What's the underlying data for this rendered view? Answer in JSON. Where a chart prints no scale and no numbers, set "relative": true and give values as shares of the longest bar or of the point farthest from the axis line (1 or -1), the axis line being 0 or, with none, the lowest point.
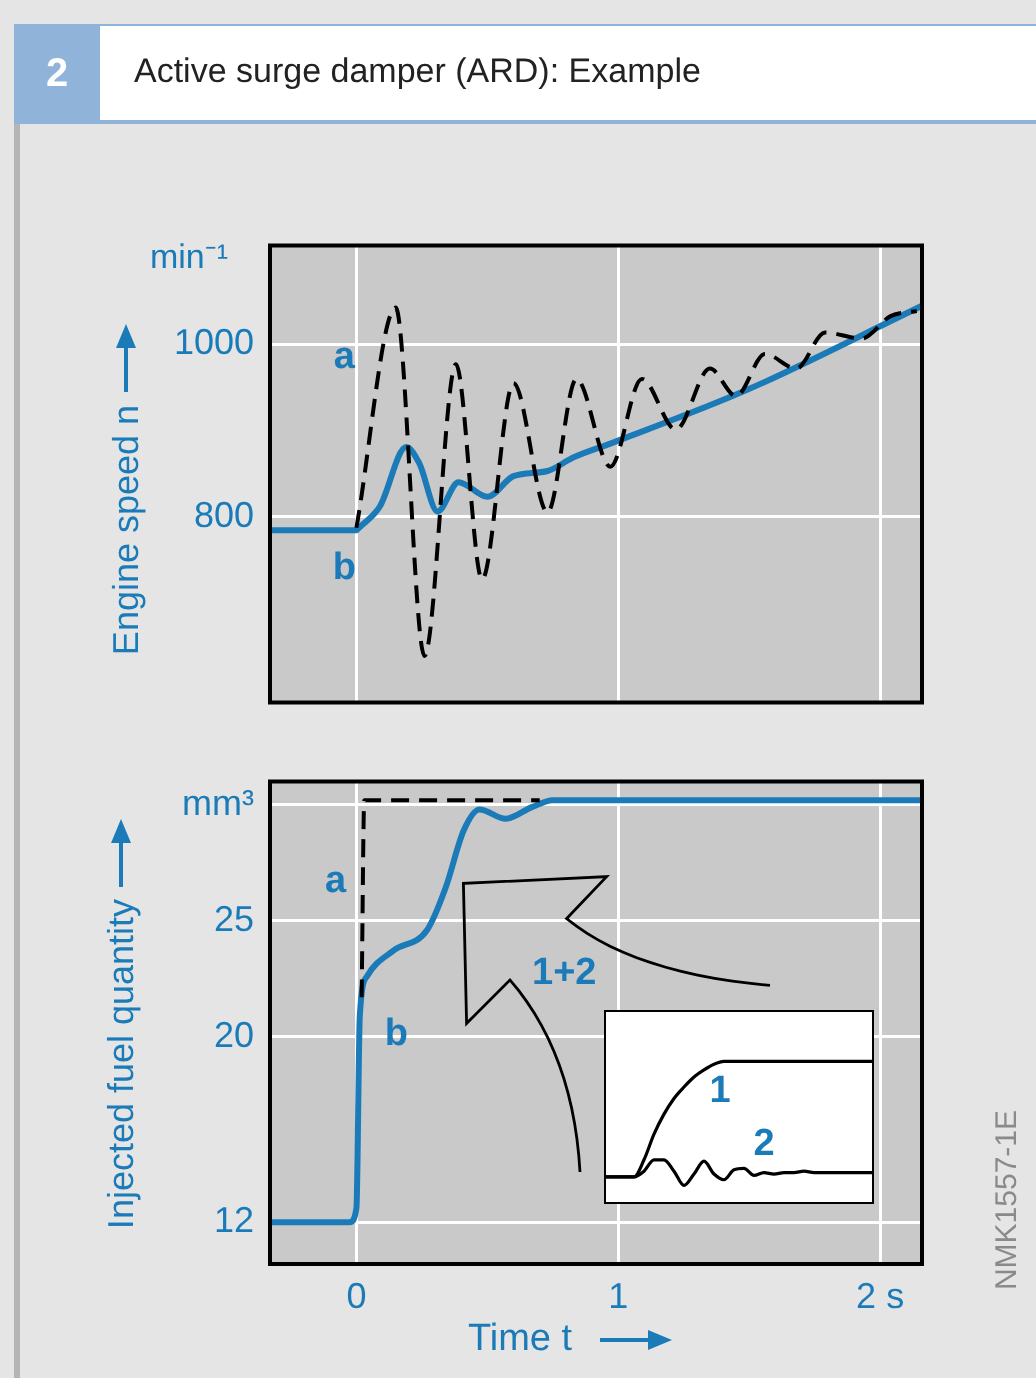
{
  "chart_data": [
    {
      "type": "line",
      "title": "Active surge damper (ARD): Example",
      "ylabel": "Engine speed n",
      "annotations": [
        "2",
        "min⁻¹"
      ],
      "xlim": [
        -0.33,
        2.16
      ],
      "xticks": [
        0,
        1,
        2
      ],
      "ylim": [
        584,
        1115
      ],
      "yticks": [
        800,
        1000
      ],
      "grid": true,
      "tick_labels": "y",
      "marker": "none",
      "series": [
        {
          "name": "a",
          "color": "#000000",
          "line_style": "dashed",
          "x": [
            0,
            0.15,
            0.26,
            0.38,
            0.48,
            0.6,
            0.73,
            0.84,
            0.97,
            1.09,
            1.22,
            1.35,
            1.45,
            1.56,
            1.68,
            1.79,
            1.93,
            2.04,
            2.14
          ],
          "values": [
            787,
            1043,
            638,
            977,
            727,
            955,
            805,
            960,
            858,
            960,
            901,
            972,
            940,
            989,
            972,
            1014,
            1007,
            1033,
            1039
          ]
        },
        {
          "name": "b",
          "color": "#1b7bb8",
          "x": [
            -0.33,
            0,
            0.01,
            0.09,
            0.19,
            0.24,
            0.31,
            0.39,
            0.5,
            0.6,
            0.73,
            0.83,
            0.98,
            1.49,
            2.16
          ],
          "values": [
            784,
            784,
            787,
            812,
            881,
            862,
            806,
            840,
            823,
            847,
            853,
            869,
            886,
            947,
            1045
          ]
        }
      ]
    },
    {
      "type": "line",
      "xlabel": "Time t",
      "ylabel": "Injected fuel quantity",
      "annotations": [
        "1+2",
        "NMK1557-1E"
      ],
      "xlim": [
        -0.33,
        2.16
      ],
      "xticks": [
        0,
        1,
        {
          "value": 2,
          "label": "2 s"
        }
      ],
      "ylim": [
        10.2,
        31
      ],
      "yticks": [
        12,
        20,
        25,
        {
          "value": 30,
          "label": "mm³"
        }
      ],
      "grid": true,
      "marker": "none",
      "series": [
        {
          "name": "a",
          "color": "#000000",
          "line_style": "dashed",
          "x": [
            0.02,
            0.03,
            0.7
          ],
          "values": [
            21.7,
            30.2,
            30.2
          ]
        },
        {
          "name": "b",
          "color": "#1b7bb8",
          "x": [
            -0.33,
            -0.025,
            0,
            0.013,
            0.04,
            0.14,
            0.27,
            0.34,
            0.41,
            0.47,
            0.57,
            0.67,
            0.75,
            2.16
          ],
          "values": [
            12,
            12,
            12.6,
            20.9,
            22.6,
            23.7,
            24.6,
            26.4,
            28.9,
            29.8,
            29.4,
            29.9,
            30.2,
            30.2
          ]
        }
      ]
    },
    {
      "type": "line",
      "relative": true,
      "tick_labels": false,
      "marker": "none",
      "categories": [
        null,
        null,
        null,
        null,
        null,
        null,
        null,
        null,
        null,
        null,
        null,
        null,
        null,
        null,
        null,
        null,
        null,
        null,
        null,
        null,
        null,
        null,
        null,
        null,
        null,
        null,
        null,
        null
      ],
      "series": [
        {
          "name": "1",
          "color": "#000000",
          "values": [
            0.19,
            0.19,
            0.19,
            0.19,
            0.31,
            0.49,
            0.63,
            0.74,
            0.82,
            0.89,
            0.94,
            0.98,
            1,
            1,
            1,
            1,
            1,
            1,
            1,
            1,
            1,
            1,
            1,
            1,
            1,
            1,
            1,
            1
          ]
        },
        {
          "name": "2",
          "color": "#000000",
          "values": [
            0.19,
            0.19,
            0.19,
            0.19,
            0.23,
            0.31,
            0.31,
            0.23,
            0.13,
            0.21,
            0.3,
            0.21,
            0.17,
            0.24,
            0.25,
            0.2,
            0.22,
            0.21,
            0.22,
            0.22,
            0.23,
            0.22,
            0.22,
            0.22,
            0.22,
            0.22,
            0.22,
            0.22
          ]
        }
      ]
    }
  ]
}
